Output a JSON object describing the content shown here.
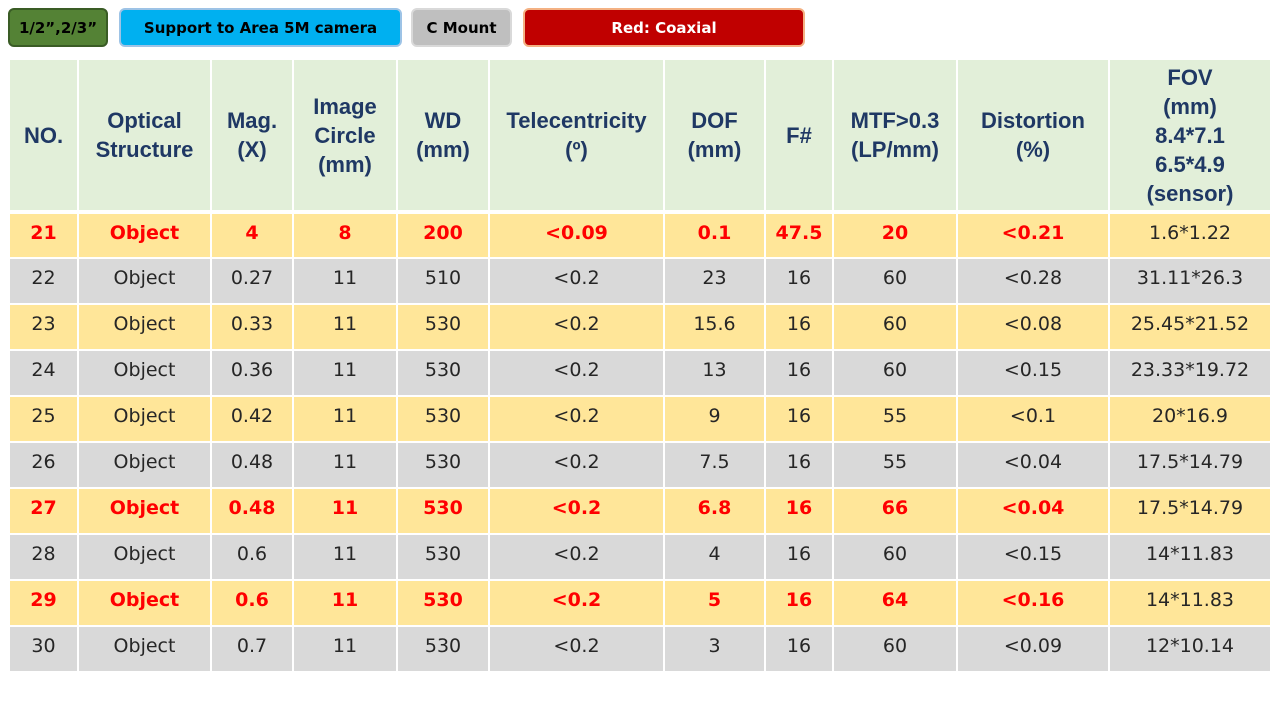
{
  "tags": {
    "sensor_size": "1/2”,2/3”",
    "camera_support": "Support to Area 5M camera",
    "mount": "C Mount",
    "legend": "Red: Coaxial"
  },
  "colors": {
    "highlight_text": "#ff0000",
    "header_bg": "#e2efd9",
    "header_text": "#1f3864",
    "row_yellow": "#ffe699",
    "row_gray": "#d9d9d9"
  },
  "table": {
    "headers": [
      "NO.",
      "Optical\nStructure",
      "Mag.\n(X)",
      "Image\nCircle\n(mm)",
      "WD\n(mm)",
      "Telecentricity\n(º)",
      "DOF\n(mm)",
      "F#",
      "MTF>0.3\n(LP/mm)",
      "Distortion\n(%)",
      "FOV\n(mm)\n8.4*7.1\n6.5*4.9\n(sensor)"
    ],
    "rows": [
      {
        "no": "21",
        "structure": "Object",
        "mag": "4",
        "circle": "8",
        "wd": "200",
        "tele": "<0.09",
        "dof": "0.1",
        "f": "47.5",
        "mtf": "20",
        "dist": "<0.21",
        "fov": "1.6*1.22",
        "coaxial": true
      },
      {
        "no": "22",
        "structure": "Object",
        "mag": "0.27",
        "circle": "11",
        "wd": "510",
        "tele": "<0.2",
        "dof": "23",
        "f": "16",
        "mtf": "60",
        "dist": "<0.28",
        "fov": "31.11*26.3",
        "coaxial": false
      },
      {
        "no": "23",
        "structure": "Object",
        "mag": "0.33",
        "circle": "11",
        "wd": "530",
        "tele": "<0.2",
        "dof": "15.6",
        "f": "16",
        "mtf": "60",
        "dist": "<0.08",
        "fov": "25.45*21.52",
        "coaxial": false
      },
      {
        "no": "24",
        "structure": "Object",
        "mag": "0.36",
        "circle": "11",
        "wd": "530",
        "tele": "<0.2",
        "dof": "13",
        "f": "16",
        "mtf": "60",
        "dist": "<0.15",
        "fov": "23.33*19.72",
        "coaxial": false
      },
      {
        "no": "25",
        "structure": "Object",
        "mag": "0.42",
        "circle": "11",
        "wd": "530",
        "tele": "<0.2",
        "dof": "9",
        "f": "16",
        "mtf": "55",
        "dist": "<0.1",
        "fov": "20*16.9",
        "coaxial": false
      },
      {
        "no": "26",
        "structure": "Object",
        "mag": "0.48",
        "circle": "11",
        "wd": "530",
        "tele": "<0.2",
        "dof": "7.5",
        "f": "16",
        "mtf": "55",
        "dist": "<0.04",
        "fov": "17.5*14.79",
        "coaxial": false
      },
      {
        "no": "27",
        "structure": "Object",
        "mag": "0.48",
        "circle": "11",
        "wd": "530",
        "tele": "<0.2",
        "dof": "6.8",
        "f": "16",
        "mtf": "66",
        "dist": "<0.04",
        "fov": "17.5*14.79",
        "coaxial": true
      },
      {
        "no": "28",
        "structure": "Object",
        "mag": "0.6",
        "circle": "11",
        "wd": "530",
        "tele": "<0.2",
        "dof": "4",
        "f": "16",
        "mtf": "60",
        "dist": "<0.15",
        "fov": "14*11.83",
        "coaxial": false
      },
      {
        "no": "29",
        "structure": "Object",
        "mag": "0.6",
        "circle": "11",
        "wd": "530",
        "tele": "<0.2",
        "dof": "5",
        "f": "16",
        "mtf": "64",
        "dist": "<0.16",
        "fov": "14*11.83",
        "coaxial": true
      },
      {
        "no": "30",
        "structure": "Object",
        "mag": "0.7",
        "circle": "11",
        "wd": "530",
        "tele": "<0.2",
        "dof": "3",
        "f": "16",
        "mtf": "60",
        "dist": "<0.09",
        "fov": "12*10.14",
        "coaxial": false
      }
    ]
  }
}
